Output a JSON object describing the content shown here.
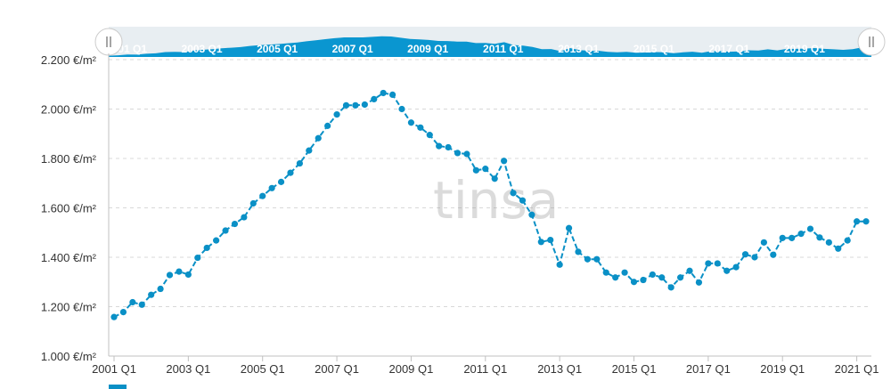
{
  "watermark": "tinsa",
  "colors": {
    "series": "#0a90c6",
    "navigator_fill": "#0a96d0",
    "grid": "#d8d8d8",
    "axis": "#c0c0c0"
  },
  "navigator": {
    "labels": [
      "2001 Q1",
      "2003 Q1",
      "2005 Q1",
      "2007 Q1",
      "2009 Q1",
      "2011 Q1",
      "2013 Q1",
      "2015 Q1",
      "2017 Q1",
      "2019 Q1"
    ],
    "left_handle_icon": "drag-handle-icon",
    "right_handle_icon": "drag-handle-icon"
  },
  "chart_data": {
    "type": "line",
    "title": "",
    "xlabel": "",
    "ylabel": "",
    "ylim": [
      1000,
      2200
    ],
    "y_ticks": [
      1000,
      1200,
      1400,
      1600,
      1800,
      2000,
      2200
    ],
    "y_tick_labels": [
      "1.000 €/m²",
      "1.200 €/m²",
      "1.400 €/m²",
      "1.600 €/m²",
      "1.800 €/m²",
      "2.000 €/m²",
      "2.200 €/m²"
    ],
    "x_tick_labels": [
      "2001 Q1",
      "2003 Q1",
      "2005 Q1",
      "2007 Q1",
      "2009 Q1",
      "2011 Q1",
      "2013 Q1",
      "2015 Q1",
      "2017 Q1",
      "2019 Q1",
      "2021 Q1"
    ],
    "grid": true,
    "legend": "none",
    "series": [
      {
        "values": [
          1158,
          1178,
          1218,
          1208,
          1248,
          1272,
          1328,
          1342,
          1330,
          1398,
          1438,
          1468,
          1508,
          1535,
          1562,
          1618,
          1648,
          1680,
          1705,
          1742,
          1780,
          1832,
          1882,
          1932,
          1978,
          2015,
          2015,
          2018,
          2040,
          2065,
          2058,
          2000,
          1945,
          1925,
          1895,
          1850,
          1845,
          1822,
          1818,
          1752,
          1758,
          1718,
          1790,
          1660,
          1630,
          1572,
          1462,
          1470,
          1370,
          1518,
          1422,
          1392,
          1392,
          1338,
          1318,
          1338,
          1300,
          1308,
          1330,
          1318,
          1278,
          1318,
          1345,
          1298,
          1375,
          1375,
          1345,
          1360,
          1412,
          1400,
          1460,
          1410,
          1478,
          1478,
          1495,
          1515,
          1480,
          1460,
          1435,
          1468,
          1545,
          1545
        ]
      }
    ]
  }
}
